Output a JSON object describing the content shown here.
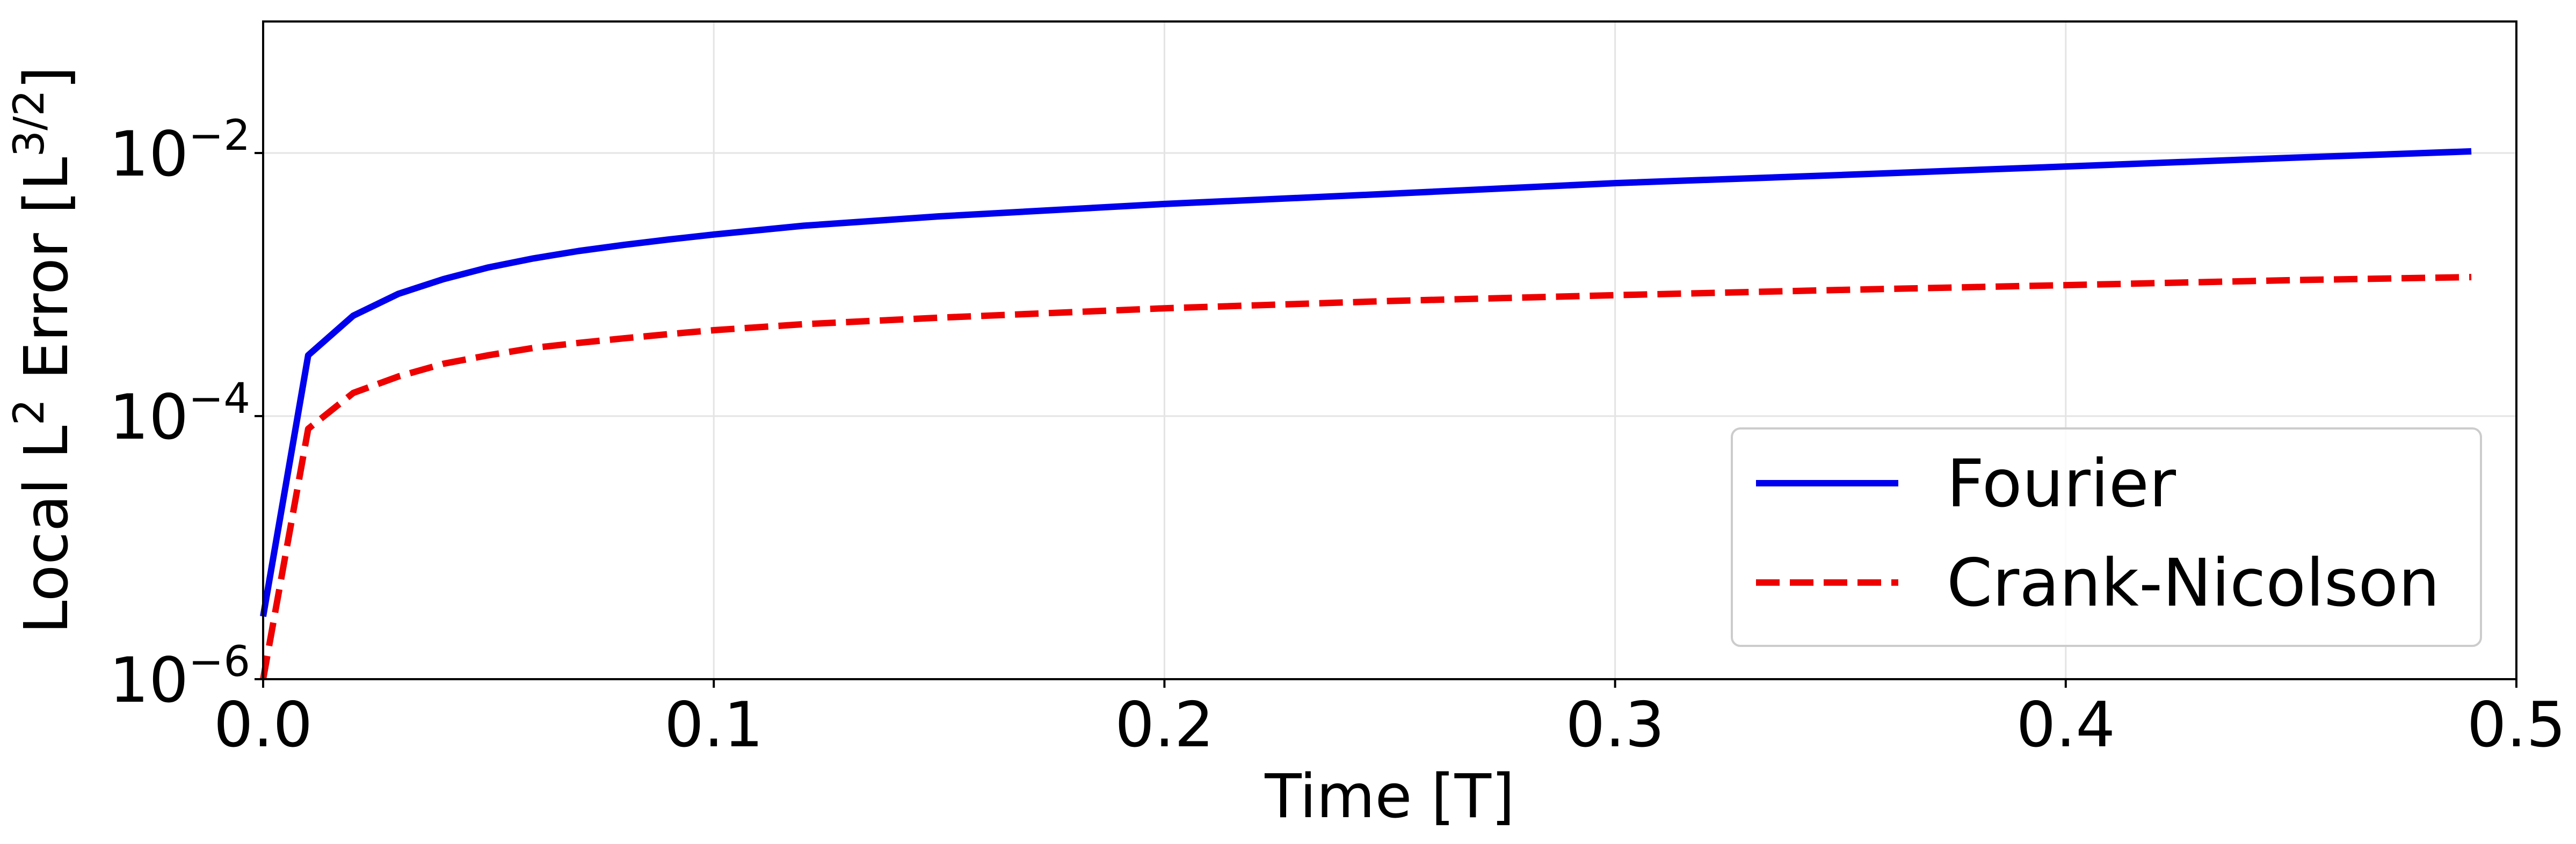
{
  "chart_data": {
    "type": "line",
    "xlabel": "Time [T]",
    "ylabel": {
      "pre": "Local L",
      "sup": "2",
      "mid": " Error [L",
      "sup2": "3/2",
      "post": "]"
    },
    "xlim": [
      0,
      0.5
    ],
    "ylim": [
      1e-06,
      0.1
    ],
    "yscale": "log",
    "grid": true,
    "legend_position": "lower-right",
    "x_ticks": [
      {
        "value": 0,
        "label": "0.0"
      },
      {
        "value": 0.1,
        "label": "0.1"
      },
      {
        "value": 0.2,
        "label": "0.2"
      },
      {
        "value": 0.3,
        "label": "0.3"
      },
      {
        "value": 0.4,
        "label": "0.4"
      },
      {
        "value": 0.5,
        "label": "0.5"
      }
    ],
    "y_ticks": [
      {
        "value": 1e-06,
        "base": "10",
        "exp": "−6"
      },
      {
        "value": 0.0001,
        "base": "10",
        "exp": "−4"
      },
      {
        "value": 0.01,
        "base": "10",
        "exp": "−2"
      }
    ],
    "x": [
      0,
      0.01,
      0.02,
      0.03,
      0.04,
      0.05,
      0.06,
      0.07,
      0.08,
      0.09,
      0.1,
      0.12,
      0.15,
      0.2,
      0.25,
      0.3,
      0.35,
      0.4,
      0.45,
      0.49
    ],
    "series": [
      {
        "name": "Fourier",
        "color": "#0000ee",
        "dash": "solid",
        "values": [
          3e-06,
          0.00029,
          0.00058,
          0.00085,
          0.0011,
          0.00135,
          0.00158,
          0.0018,
          0.002,
          0.0022,
          0.0024,
          0.0028,
          0.0033,
          0.0041,
          0.0049,
          0.0059,
          0.0068,
          0.0079,
          0.0092,
          0.0103
        ]
      },
      {
        "name": "Crank-Nicolson",
        "color": "#ee0000",
        "dash": "dashed",
        "values": [
          1e-06,
          8e-05,
          0.00015,
          0.0002,
          0.00025,
          0.00029,
          0.00033,
          0.00036,
          0.00039,
          0.00042,
          0.00045,
          0.0005,
          0.00056,
          0.00066,
          0.00075,
          0.00083,
          0.00091,
          0.00099,
          0.00108,
          0.00114
        ]
      }
    ]
  }
}
